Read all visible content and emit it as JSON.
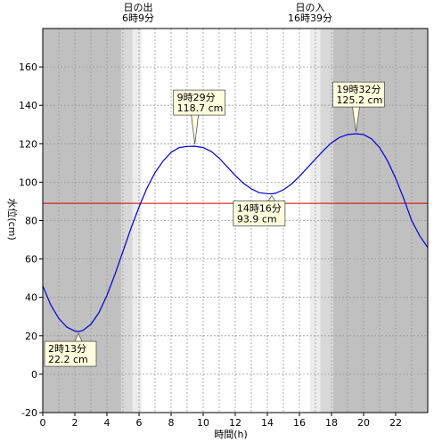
{
  "chart_data": {
    "type": "line",
    "xlabel": "時間(h)",
    "ylabel": "水位(cm)",
    "xlim": [
      0,
      24
    ],
    "ylim": [
      -20,
      180
    ],
    "x_ticks": [
      0,
      2,
      4,
      6,
      8,
      10,
      12,
      14,
      16,
      18,
      20,
      22
    ],
    "y_ticks": [
      -20,
      0,
      20,
      40,
      60,
      80,
      100,
      120,
      140,
      160
    ],
    "reference_line": {
      "value": 89,
      "color": "#dd0000"
    },
    "sunrise": {
      "label": "日の出",
      "time_text": "6時9分",
      "hour": 6.15
    },
    "sunset": {
      "label": "日の入",
      "time_text": "16時39分",
      "hour": 16.65
    },
    "shading": {
      "night": [
        [
          0,
          4.9
        ],
        [
          18.1,
          24
        ]
      ],
      "twilight": [
        [
          4.9,
          5.6
        ],
        [
          17.3,
          18.1
        ]
      ],
      "dawn": [
        [
          5.6,
          6.15
        ],
        [
          16.65,
          17.3
        ]
      ]
    },
    "colors": {
      "night": "#c0c0c0",
      "twilight": "#d8d8d8",
      "dawn": "#ececec",
      "day": "#ffffff",
      "line": "#0000dd"
    },
    "series": [
      {
        "x": [
          0,
          0.5,
          1,
          1.5,
          2,
          2.22,
          2.5,
          3,
          3.5,
          4,
          4.5,
          5,
          5.5,
          6,
          6.5,
          7,
          7.5,
          8,
          8.5,
          9,
          9.48,
          10,
          10.5,
          11,
          11.5,
          12,
          12.5,
          13,
          13.5,
          14,
          14.27,
          14.5,
          15,
          15.5,
          16,
          16.5,
          17,
          17.5,
          18,
          18.5,
          19,
          19.53,
          20,
          20.5,
          21,
          21.5,
          22,
          22.5,
          23,
          23.5,
          24
        ],
        "values": [
          46,
          36,
          29,
          24.5,
          22.5,
          22.2,
          22.8,
          26,
          32,
          41,
          52,
          64,
          76,
          87,
          97,
          105,
          111,
          115.5,
          118,
          118.6,
          118.7,
          118,
          116,
          112.5,
          108,
          103.5,
          99.5,
          96.5,
          94.5,
          94,
          93.9,
          94.2,
          96,
          99,
          103,
          107.5,
          112,
          116.5,
          120.5,
          123.3,
          124.8,
          125.2,
          124.8,
          122.5,
          118,
          111,
          102,
          91.5,
          80,
          72,
          66
        ]
      }
    ],
    "annotations": [
      {
        "time": "2時13分",
        "value": "22.2 cm",
        "hour": 2.22,
        "level": 22.2
      },
      {
        "time": "9時29分",
        "value": "118.7 cm",
        "hour": 9.48,
        "level": 118.7
      },
      {
        "time": "14時16分",
        "value": "93.9 cm",
        "hour": 14.27,
        "level": 93.9
      },
      {
        "time": "19時32分",
        "value": "125.2 cm",
        "hour": 19.53,
        "level": 125.2
      }
    ]
  }
}
